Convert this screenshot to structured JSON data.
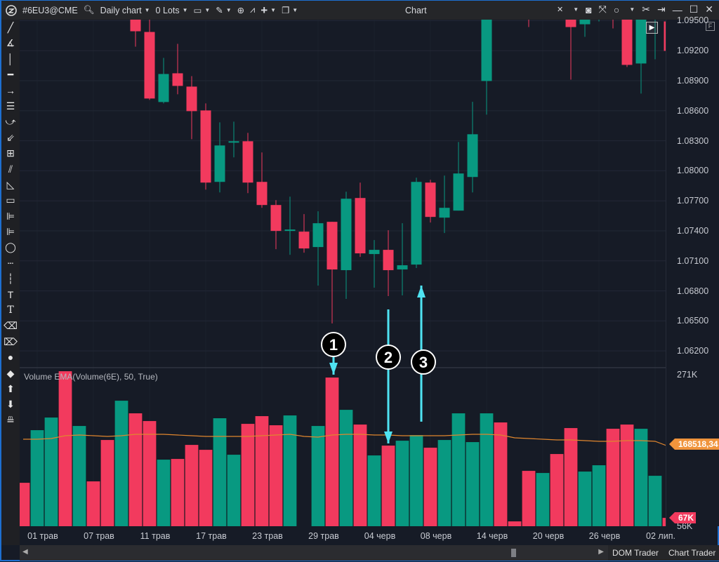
{
  "titlebar": {
    "symbol": "#6EU3@CME",
    "timeframe": "Daily chart",
    "lots": "0 Lots",
    "title": "Chart"
  },
  "toolbar_icons": [
    "search-icon",
    "monitor-icon",
    "pencil-icon",
    "zoom-icon",
    "indicator-icon",
    "crosshair-icon",
    "window-icon"
  ],
  "right_icons": [
    "link-icon",
    "camera-icon",
    "fullscreen-icon",
    "circle-icon",
    "tools-icon",
    "pin-icon",
    "minimize-icon",
    "maximize-icon",
    "close-icon"
  ],
  "volume_panel": {
    "title": "Volume EMA(Volume(6E), 50, True)",
    "axis_top": "271K",
    "axis_bottom": "56K",
    "ema_tag": "168518,34",
    "last_volume_tag": "67K"
  },
  "bottom": {
    "dom_trader": "DOM Trader",
    "chart_trader": "Chart Trader"
  },
  "annotations": [
    {
      "label": "1"
    },
    {
      "label": "2"
    },
    {
      "label": "3"
    }
  ],
  "colors": {
    "up": "#089981",
    "down": "#f23a5e",
    "ema": "#e0862e",
    "annotation": "#4fe3f2",
    "background": "#161b26"
  },
  "chart_data": {
    "type": "candlestick",
    "price_axis": {
      "ticks": [
        "1.09500",
        "1.09200",
        "1.08900",
        "1.08600",
        "1.08300",
        "1.08000",
        "1.07700",
        "1.07400",
        "1.07100",
        "1.06800",
        "1.06500",
        "1.06200"
      ],
      "ylim": [
        1.0604,
        1.0951
      ]
    },
    "volume_axis": {
      "ylim_k": [
        55,
        280
      ]
    },
    "x_ticks": [
      {
        "slot": 1,
        "label": "01 трав"
      },
      {
        "slot": 5,
        "label": "07 трав"
      },
      {
        "slot": 9,
        "label": "11 трав"
      },
      {
        "slot": 13,
        "label": "17 трав"
      },
      {
        "slot": 17,
        "label": "23 трав"
      },
      {
        "slot": 21,
        "label": "29 трав"
      },
      {
        "slot": 25,
        "label": "04 черв"
      },
      {
        "slot": 29,
        "label": "08 черв"
      },
      {
        "slot": 33,
        "label": "14 черв"
      },
      {
        "slot": 37,
        "label": "20 черв"
      },
      {
        "slot": 41,
        "label": "26 черв"
      },
      {
        "slot": 45,
        "label": "02 лип."
      }
    ],
    "bars": [
      {
        "dir": "down",
        "v": 117
      },
      {
        "dir": "up",
        "v": 192
      },
      {
        "dir": "up",
        "v": 210
      },
      {
        "dir": "down",
        "v": 276
      },
      {
        "dir": "up",
        "v": 198
      },
      {
        "dir": "down",
        "v": 119
      },
      {
        "dir": "down",
        "v": 178
      },
      {
        "dir": "up",
        "v": 234
      },
      {
        "dir": "down",
        "v": 216,
        "o": 1.0956,
        "h": 1.096,
        "l": 1.0924,
        "c": 1.09394
      },
      {
        "dir": "down",
        "v": 205,
        "o": 1.09387,
        "h": 1.0955,
        "l": 1.08708,
        "c": 1.08722
      },
      {
        "dir": "up",
        "v": 150,
        "o": 1.08687,
        "h": 1.09128,
        "l": 1.08673,
        "c": 1.08967
      },
      {
        "dir": "down",
        "v": 151,
        "o": 1.08974,
        "h": 1.09268,
        "l": 1.08764,
        "c": 1.08848
      },
      {
        "dir": "down",
        "v": 171,
        "o": 1.08841,
        "h": 1.08946,
        "l": 1.08316,
        "c": 1.08596
      },
      {
        "dir": "down",
        "v": 164,
        "o": 1.08603,
        "h": 1.08673,
        "l": 1.07812,
        "c": 1.07882
      },
      {
        "dir": "up",
        "v": 209,
        "o": 1.07889,
        "h": 1.08484,
        "l": 1.07784,
        "c": 1.08253
      },
      {
        "dir": "up",
        "v": 157,
        "o": 1.08281,
        "h": 1.08491,
        "l": 1.08134,
        "c": 1.08295
      },
      {
        "dir": "down",
        "v": 201,
        "o": 1.08295,
        "h": 1.08379,
        "l": 1.07777,
        "c": 1.07882
      },
      {
        "dir": "down",
        "v": 212,
        "o": 1.07889,
        "h": 1.08183,
        "l": 1.0763,
        "c": 1.07658
      },
      {
        "dir": "down",
        "v": 199,
        "o": 1.07658,
        "h": 1.07707,
        "l": 1.07217,
        "c": 1.07399
      },
      {
        "dir": "up",
        "v": 213,
        "o": 1.07406,
        "h": 1.07742,
        "l": 1.07161,
        "c": 1.07413
      },
      {
        "dir": "down",
        "v": null,
        "o": 1.07392,
        "h": 1.07567,
        "l": 1.07182,
        "c": 1.07224
      },
      {
        "dir": "up",
        "v": 198,
        "o": 1.07238,
        "h": 1.07595,
        "l": 1.06853,
        "c": 1.07476
      },
      {
        "dir": "down",
        "v": 267,
        "o": 1.0749,
        "h": 1.0749,
        "l": 1.06475,
        "c": 1.07014
      },
      {
        "dir": "up",
        "v": 221,
        "o": 1.07007,
        "h": 1.07791,
        "l": 1.0672,
        "c": 1.07721
      },
      {
        "dir": "down",
        "v": 200,
        "o": 1.07728,
        "h": 1.07882,
        "l": 1.0714,
        "c": 1.07175
      },
      {
        "dir": "up",
        "v": 156,
        "o": 1.07168,
        "h": 1.07308,
        "l": 1.06832,
        "c": 1.0721
      },
      {
        "dir": "down",
        "v": 170,
        "o": 1.0721,
        "h": 1.07406,
        "l": 1.06748,
        "c": 1.07007
      },
      {
        "dir": "up",
        "v": 177,
        "o": 1.07014,
        "h": 1.07476,
        "l": 1.06755,
        "c": 1.07056
      },
      {
        "dir": "up",
        "v": 185,
        "o": 1.07063,
        "h": 1.07931,
        "l": 1.07028,
        "c": 1.07889
      },
      {
        "dir": "down",
        "v": 167,
        "o": 1.07882,
        "h": 1.0791,
        "l": 1.07483,
        "c": 1.07539
      },
      {
        "dir": "up",
        "v": 178,
        "o": 1.07532,
        "h": 1.07952,
        "l": 1.07378,
        "c": 1.0763
      },
      {
        "dir": "up",
        "v": 216,
        "o": 1.07602,
        "h": 1.08288,
        "l": 1.07602,
        "c": 1.07973
      },
      {
        "dir": "up",
        "v": 175,
        "o": 1.07938,
        "h": 1.08689,
        "l": 1.07784,
        "c": 1.08365
      },
      {
        "dir": "up",
        "v": 216,
        "o": 1.08897,
        "h": 1.0975,
        "l": 1.08561,
        "c": 1.0965
      },
      {
        "dir": "down",
        "v": 203
      },
      {
        "dir": "down",
        "v": 62
      },
      {
        "dir": "down",
        "v": 134,
        "o": 1.0985,
        "h": 1.099,
        "l": 1.09436,
        "c": 1.0965
      },
      {
        "dir": "up",
        "v": 131
      },
      {
        "dir": "down",
        "v": 158
      },
      {
        "dir": "down",
        "v": 195,
        "o": 1.096,
        "h": 1.0965,
        "l": 1.08911,
        "c": 1.09436
      },
      {
        "dir": "up",
        "v": 133,
        "o": 1.09464,
        "h": 1.0965,
        "l": 1.09338,
        "c": 1.096
      },
      {
        "dir": "up",
        "v": 142,
        "o": 1.0958,
        "h": 1.0972,
        "l": 1.09492,
        "c": 1.0968
      },
      {
        "dir": "down",
        "v": 194,
        "o": 1.0975,
        "h": 1.098,
        "l": 1.09422,
        "c": 1.096
      },
      {
        "dir": "down",
        "v": 200,
        "o": 1.0965,
        "h": 1.0968,
        "l": 1.09037,
        "c": 1.09058
      },
      {
        "dir": "up",
        "v": 194,
        "o": 1.09072,
        "h": 1.0965,
        "l": 1.08771,
        "c": 1.096
      },
      {
        "dir": "up",
        "v": 127,
        "o": 1.0955,
        "h": 1.097,
        "l": 1.09114,
        "c": 1.0965
      },
      {
        "dir": "down",
        "v": 67,
        "o": 1.09492,
        "h": 1.0958,
        "l": 1.0918,
        "c": 1.09198
      }
    ],
    "volume_ema": [
      179,
      179,
      180,
      184,
      185,
      184,
      183,
      184,
      186,
      186,
      186,
      185,
      184,
      183,
      183,
      183,
      183,
      184,
      185,
      186,
      183,
      182,
      185,
      186,
      186,
      185,
      185,
      184,
      184,
      184,
      184,
      185,
      186,
      186,
      185,
      181,
      180,
      179,
      178,
      178,
      177,
      176,
      176,
      177,
      177,
      176,
      168.5
    ]
  }
}
